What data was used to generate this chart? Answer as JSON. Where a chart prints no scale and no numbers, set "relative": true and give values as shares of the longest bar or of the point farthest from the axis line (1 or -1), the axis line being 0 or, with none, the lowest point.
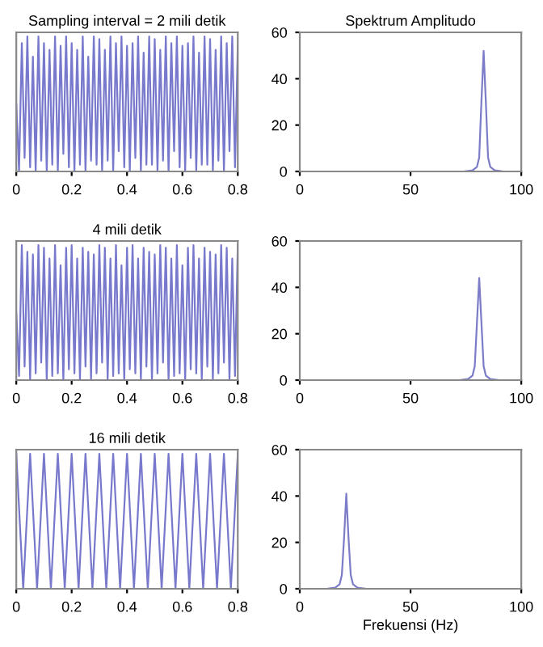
{
  "chart_data": [
    {
      "type": "line",
      "title": "Sampling interval = 2 mili detik",
      "relative": true,
      "xlim": [
        0,
        0.8
      ],
      "xticks": [
        0,
        0.2,
        0.4,
        0.6,
        0.8
      ],
      "tick_labels": "x",
      "series": [
        {
          "color": "#7878cc",
          "x": [
            0,
            0.01,
            0.02,
            0.03,
            0.04,
            0.05,
            0.06,
            0.07,
            0.08,
            0.09,
            0.1,
            0.11,
            0.12,
            0.13,
            0.14,
            0.15,
            0.16,
            0.17,
            0.18,
            0.19,
            0.2,
            0.21,
            0.22,
            0.23,
            0.24,
            0.25,
            0.26,
            0.27,
            0.28,
            0.29,
            0.3,
            0.31,
            0.32,
            0.33,
            0.34,
            0.35,
            0.36,
            0.37,
            0.38,
            0.39,
            0.4,
            0.41,
            0.42,
            0.43,
            0.44,
            0.45,
            0.46,
            0.47,
            0.48,
            0.49,
            0.5,
            0.51,
            0.52,
            0.53,
            0.54,
            0.55,
            0.56,
            0.57,
            0.58,
            0.59,
            0.6,
            0.61,
            0.62,
            0.63,
            0.64,
            0.65,
            0.66,
            0.67,
            0.68,
            0.69,
            0.7,
            0.71,
            0.72,
            0.73,
            0.74,
            0.75,
            0.76,
            0.77,
            0.78,
            0.79,
            0.8
          ],
          "values": [
            0.5,
            0,
            0.95,
            0.1,
            1,
            0.03,
            0.85,
            0,
            1,
            0.08,
            0.95,
            0,
            0.9,
            0.05,
            1,
            0,
            0.93,
            0.13,
            1,
            0.03,
            0.95,
            0,
            0.9,
            0.05,
            1,
            0,
            0.85,
            0.08,
            1,
            0.05,
            0.98,
            0,
            0.9,
            0.08,
            1,
            0,
            0.95,
            0.15,
            1,
            0.03,
            0.93,
            0,
            0.95,
            0.1,
            1,
            0,
            0.88,
            0.05,
            1,
            0.05,
            0.98,
            0,
            0.9,
            0.08,
            1,
            0,
            0.95,
            0.15,
            1,
            0.03,
            0.93,
            0,
            0.95,
            0.1,
            1,
            0,
            0.88,
            0.05,
            1,
            0.05,
            0.98,
            0,
            0.9,
            0.08,
            1,
            0,
            0.95,
            0.15,
            1,
            0.03,
            0.93
          ]
        }
      ]
    },
    {
      "type": "line",
      "title": "Spektrum Amplitudo",
      "xlim": [
        0,
        100
      ],
      "ylim": [
        0,
        60
      ],
      "xticks": [
        0,
        50,
        100
      ],
      "yticks": [
        0,
        20,
        40,
        60
      ],
      "series": [
        {
          "color": "#7c7cc8",
          "x": [
            0,
            74,
            78,
            80,
            81,
            82,
            83,
            84,
            85,
            86,
            88,
            92,
            100
          ],
          "values": [
            0,
            0,
            0.5,
            2,
            6,
            30,
            52,
            30,
            6,
            2,
            0.5,
            0,
            0
          ]
        }
      ]
    },
    {
      "type": "line",
      "title": "4 mili detik",
      "relative": true,
      "xlim": [
        0,
        0.8
      ],
      "xticks": [
        0,
        0.2,
        0.4,
        0.6,
        0.8
      ],
      "tick_labels": "x",
      "series": [
        {
          "color": "#7878cc",
          "x": [
            0,
            0.01,
            0.02,
            0.03,
            0.04,
            0.05,
            0.06,
            0.07,
            0.08,
            0.09,
            0.1,
            0.11,
            0.12,
            0.13,
            0.14,
            0.15,
            0.16,
            0.17,
            0.18,
            0.19,
            0.2,
            0.21,
            0.22,
            0.23,
            0.24,
            0.25,
            0.26,
            0.27,
            0.28,
            0.29,
            0.3,
            0.31,
            0.32,
            0.33,
            0.34,
            0.35,
            0.36,
            0.37,
            0.38,
            0.39,
            0.4,
            0.41,
            0.42,
            0.43,
            0.44,
            0.45,
            0.46,
            0.47,
            0.48,
            0.49,
            0.5,
            0.51,
            0.52,
            0.53,
            0.54,
            0.55,
            0.56,
            0.57,
            0.58,
            0.59,
            0.6,
            0.61,
            0.62,
            0.63,
            0.64,
            0.65,
            0.66,
            0.67,
            0.68,
            0.69,
            0.7,
            0.71,
            0.72,
            0.73,
            0.74,
            0.75,
            0.76,
            0.77,
            0.78,
            0.79,
            0.8
          ],
          "values": [
            0.5,
            0.03,
            1,
            0.1,
            0.95,
            0,
            0.93,
            0.05,
            1,
            0.13,
            0.98,
            0,
            0.9,
            0.03,
            1,
            0.05,
            0.85,
            0,
            0.98,
            0.08,
            1,
            0.05,
            0.9,
            0,
            0.98,
            0.1,
            0.95,
            0,
            0.93,
            0.05,
            1,
            0.13,
            0.98,
            0,
            0.9,
            0.03,
            1,
            0.05,
            0.85,
            0,
            0.98,
            0.08,
            1,
            0.05,
            0.9,
            0,
            0.98,
            0.1,
            0.95,
            0,
            0.93,
            0.05,
            1,
            0.13,
            0.98,
            0,
            0.9,
            0.03,
            1,
            0.05,
            0.85,
            0,
            0.98,
            0.08,
            1,
            0.05,
            0.9,
            0,
            0.98,
            0.1,
            0.95,
            0,
            0.93,
            0.05,
            1,
            0.13,
            0.98,
            0,
            0.9,
            0.03,
            1
          ]
        }
      ]
    },
    {
      "type": "line",
      "xlim": [
        0,
        100
      ],
      "ylim": [
        0,
        60
      ],
      "xticks": [
        0,
        50,
        100
      ],
      "yticks": [
        0,
        20,
        40,
        60
      ],
      "series": [
        {
          "color": "#7c7cc8",
          "x": [
            0,
            72,
            76,
            78,
            79,
            80,
            81,
            82,
            83,
            84,
            86,
            90,
            100
          ],
          "values": [
            0,
            0,
            0.5,
            2,
            6,
            25,
            44,
            25,
            6,
            2,
            0.5,
            0,
            0
          ]
        }
      ]
    },
    {
      "type": "line",
      "title": "16 mili detik",
      "relative": true,
      "xlim": [
        0,
        0.8
      ],
      "xticks": [
        0,
        0.2,
        0.4,
        0.6,
        0.8
      ],
      "tick_labels": "x",
      "series": [
        {
          "color": "#7878cc",
          "x": [
            0,
            0.025,
            0.05,
            0.075,
            0.1,
            0.125,
            0.15,
            0.175,
            0.2,
            0.225,
            0.25,
            0.275,
            0.3,
            0.325,
            0.35,
            0.375,
            0.4,
            0.425,
            0.45,
            0.475,
            0.5,
            0.525,
            0.55,
            0.575,
            0.6,
            0.625,
            0.65,
            0.675,
            0.7,
            0.725,
            0.75,
            0.775,
            0.8
          ],
          "values": [
            1,
            0,
            1,
            0,
            1,
            0,
            1,
            0,
            1,
            0,
            1,
            0,
            1,
            0,
            1,
            0,
            1,
            0,
            1,
            0,
            1,
            0,
            1,
            0,
            1,
            0,
            1,
            0,
            1,
            0,
            1,
            0,
            1
          ]
        }
      ]
    },
    {
      "type": "line",
      "xlabel": "Frekuensi (Hz)",
      "xlim": [
        0,
        100
      ],
      "ylim": [
        0,
        60
      ],
      "xticks": [
        0,
        50,
        100
      ],
      "yticks": [
        0,
        20,
        40,
        60
      ],
      "series": [
        {
          "color": "#7c7cc8",
          "x": [
            0,
            12,
            16,
            18,
            19,
            20,
            21,
            22,
            23,
            24,
            26,
            30,
            100
          ],
          "values": [
            0,
            0,
            0.5,
            2,
            6,
            22,
            41,
            22,
            6,
            2,
            0.5,
            0,
            0
          ]
        }
      ]
    }
  ]
}
